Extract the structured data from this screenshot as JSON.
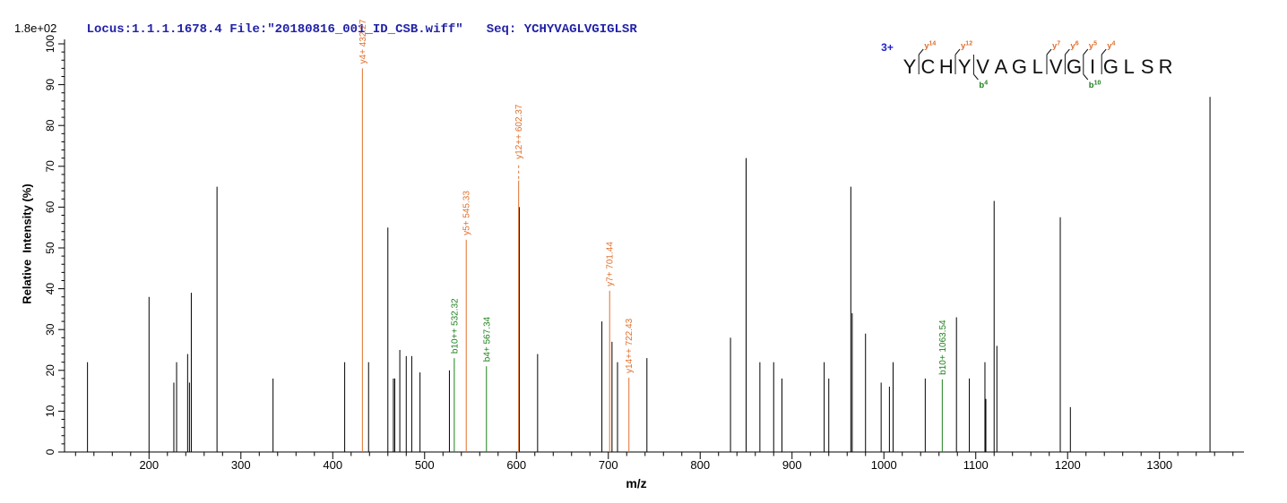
{
  "header": {
    "locus_file": "Locus:1.1.1.1678.4 File:\"20180816_001_ID_CSB.wiff\"",
    "seq_text": "Seq: YCHYVAGLVGIGLSR"
  },
  "colors": {
    "header_blue": "#2222a8",
    "charge_blue": "#2222cc",
    "y_ion_orange": "#e0702d",
    "b_ion_green": "#1e801e",
    "peak_black": "#000000",
    "axis_black": "#000000",
    "background": "#ffffff"
  },
  "chart_data": {
    "type": "bar",
    "subtype": "mass-spectrum-stick-plot",
    "title": "",
    "xlabel": "m/z",
    "ylabel": "Relative  Intensity (%)",
    "scale_max_label": "1.8e+02",
    "xlim": [
      108,
      1392
    ],
    "ylim": [
      0,
      100
    ],
    "x_major_ticks": [
      200,
      300,
      400,
      500,
      600,
      700,
      800,
      900,
      1000,
      1100,
      1200,
      1300
    ],
    "x_minor_tick_step": 20,
    "y_major_ticks": [
      0,
      10,
      20,
      30,
      40,
      50,
      60,
      70,
      80,
      90,
      100
    ],
    "y_minor_tick_step": 2,
    "grid": false,
    "legend": "none",
    "precursor_charge": "3+",
    "sequence": [
      "Y",
      "C",
      "H",
      "Y",
      "V",
      "A",
      "G",
      "L",
      "V",
      "G",
      "I",
      "G",
      "L",
      "S",
      "R"
    ],
    "y_ion_marks": [
      {
        "gap_after_index": 0,
        "ion": "y",
        "num": "14"
      },
      {
        "gap_after_index": 2,
        "ion": "y",
        "num": "12"
      },
      {
        "gap_after_index": 7,
        "ion": "y",
        "num": "7"
      },
      {
        "gap_after_index": 8,
        "ion": "y",
        "num": "6"
      },
      {
        "gap_after_index": 9,
        "ion": "y",
        "num": "5"
      },
      {
        "gap_after_index": 10,
        "ion": "y",
        "num": "4"
      }
    ],
    "b_ion_marks": [
      {
        "gap_after_index": 3,
        "ion": "b",
        "num": "4"
      },
      {
        "gap_after_index": 9,
        "ion": "b",
        "num": "10"
      }
    ],
    "peaks_annotated": [
      {
        "mz": 432.27,
        "pct": 94,
        "label": "y4+ 432.27",
        "ion": "y",
        "dashed_leader": false
      },
      {
        "mz": 545.33,
        "pct": 52,
        "label": "y5+ 545.33",
        "ion": "y",
        "dashed_leader": false
      },
      {
        "mz": 602.37,
        "pct": 66.5,
        "label": "y12++ 602.37",
        "ion": "y",
        "dashed_leader": true
      },
      {
        "mz": 701.44,
        "pct": 39.5,
        "label": "y7+ 701.44",
        "ion": "y",
        "dashed_leader": false
      },
      {
        "mz": 722.43,
        "pct": 18.2,
        "label": "y14++ 722.43",
        "ion": "y",
        "dashed_leader": false
      },
      {
        "mz": 532.32,
        "pct": 23,
        "label": "b10++ 532.32",
        "ion": "b",
        "dashed_leader": false
      },
      {
        "mz": 567.34,
        "pct": 21,
        "label": "b4+ 567.34",
        "ion": "b",
        "dashed_leader": false
      },
      {
        "mz": 1063.54,
        "pct": 17.8,
        "label": "b10+ 1063.54",
        "ion": "b",
        "dashed_leader": false
      }
    ],
    "peaks_unannotated": [
      [
        133,
        22
      ],
      [
        200,
        38
      ],
      [
        227,
        17
      ],
      [
        230,
        22
      ],
      [
        242,
        24
      ],
      [
        244,
        17
      ],
      [
        246,
        39
      ],
      [
        274,
        65
      ],
      [
        335,
        18
      ],
      [
        413,
        22
      ],
      [
        439,
        22
      ],
      [
        460,
        55
      ],
      [
        466,
        18
      ],
      [
        467.5,
        18
      ],
      [
        473,
        25
      ],
      [
        480,
        23.5
      ],
      [
        486,
        23.5
      ],
      [
        495,
        19.5
      ],
      [
        527,
        20
      ],
      [
        603.2,
        60
      ],
      [
        623,
        24
      ],
      [
        693,
        32
      ],
      [
        704,
        27
      ],
      [
        710,
        22
      ],
      [
        742,
        23
      ],
      [
        833,
        28
      ],
      [
        850,
        72
      ],
      [
        865,
        22
      ],
      [
        880,
        22
      ],
      [
        889,
        18
      ],
      [
        935,
        22
      ],
      [
        940,
        18
      ],
      [
        964,
        65
      ],
      [
        965.5,
        34
      ],
      [
        980,
        29
      ],
      [
        997,
        17
      ],
      [
        1006,
        16
      ],
      [
        1010,
        22
      ],
      [
        1045,
        18
      ],
      [
        1079,
        33
      ],
      [
        1093,
        18
      ],
      [
        1110,
        22
      ],
      [
        1111,
        13
      ],
      [
        1120,
        61.5
      ],
      [
        1123,
        26
      ],
      [
        1192,
        57.5
      ],
      [
        1203,
        11
      ],
      [
        1355,
        87
      ]
    ]
  }
}
